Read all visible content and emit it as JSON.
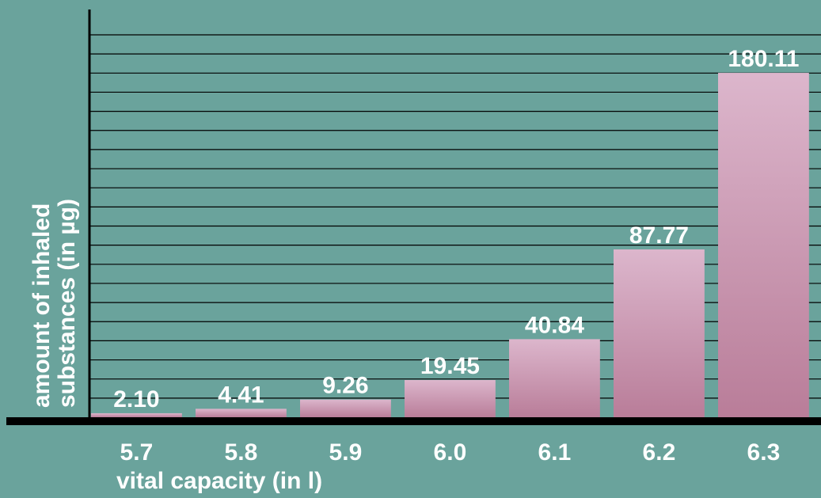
{
  "chart_data": {
    "type": "bar",
    "categories": [
      "5.7",
      "5.8",
      "5.9",
      "6.0",
      "6.1",
      "6.2",
      "6.3"
    ],
    "values": [
      2.1,
      4.41,
      9.26,
      19.45,
      40.84,
      87.77,
      180.11
    ],
    "value_labels": [
      "2.10",
      "4.41",
      "9.26",
      "19.45",
      "40.84",
      "87.77",
      "180.11"
    ],
    "title": "",
    "xlabel": "vital capacity (in l)",
    "ylabel_lines": [
      "amount of inhaled",
      "substances (in µg)"
    ],
    "ylim": [
      0,
      200
    ],
    "grid": true,
    "legend": "none",
    "colors": {
      "background": "#6aa39c",
      "bar_top": "#dcb6cc",
      "bar_bottom": "#b97d99",
      "text": "#ffffff",
      "axis": "#000000"
    }
  }
}
